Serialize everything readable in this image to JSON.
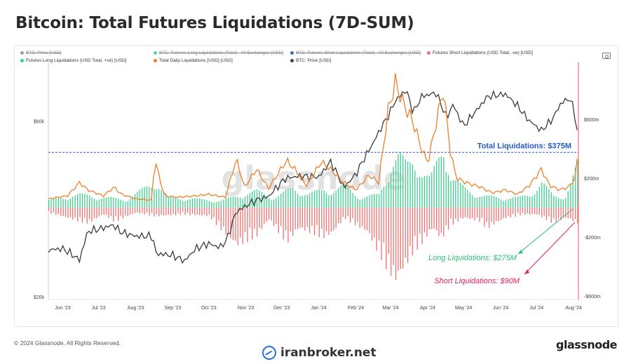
{
  "title": "Bitcoin: Total Futures Liquidations (7D-SUM)",
  "legend": [
    {
      "label": "BTC: Price [USD]",
      "color": "#9e9e9e",
      "dim": true
    },
    {
      "label": "BTC: Futures Long Liquidations (Total) - All Exchanges [USD]",
      "color": "#5fd6a0",
      "dim": true
    },
    {
      "label": "BTC: Futures Short Liquidations (Total) - All Exchanges [USD]",
      "color": "#3b6fb6",
      "dim": true
    },
    {
      "label": "Futures Short Liquidations (USD Total, -ve) [USD]",
      "color": "#f07070",
      "dim": false
    },
    {
      "label": "Futures Long Liquidations (USD Total, +ve) [USD]",
      "color": "#3ecf8e",
      "dim": false
    },
    {
      "label": "Total Daily Liquidations [USD] [USD]",
      "color": "#f07f2a",
      "dim": false
    },
    {
      "label": "BTC: Price [USD]",
      "color": "#444444",
      "dim": false
    }
  ],
  "footer": {
    "copyright": "© 2024 Glassnode. All Rights Reserved.",
    "brand": "glassnode",
    "watermark_site": "iranbroker.net",
    "watermark_logo": "glassnode"
  },
  "chart_data": {
    "type": "line",
    "x_ticks": [
      "Jun '23",
      "Jul '23",
      "Aug '23",
      "Sep '23",
      "Oct '23",
      "Nov '23",
      "Dec '23",
      "Jan '24",
      "Feb '24",
      "Mar '24",
      "Apr '24",
      "May '24",
      "Jun '24",
      "Jul '24",
      "Aug '24"
    ],
    "x_start": "2023-05-20",
    "x_end": "2024-08-05",
    "left_axis": {
      "label": "",
      "scale": "log",
      "ticks": [
        "$20k",
        "$60k"
      ],
      "tick_values": [
        20000,
        60000
      ],
      "range": [
        20000,
        80000
      ]
    },
    "right_axis": {
      "label": "",
      "ticks": [
        "-$600m",
        "-$200m",
        "$200m",
        "$600m"
      ],
      "tick_values": [
        -600,
        -200,
        200,
        600
      ],
      "range": [
        -600,
        600
      ],
      "unit": "m USD"
    },
    "reference_line": {
      "value": 375,
      "label": "Total Liquidations: $375M",
      "color": "#2459c9",
      "style": "dashed"
    },
    "annotations": [
      {
        "text": "Long Liquidations: $275M",
        "color": "#2bbf7a"
      },
      {
        "text": "Short Liquidations: $90M",
        "color": "#e0245e"
      }
    ],
    "series": [
      {
        "name": "BTC: Price [USD]",
        "axis": "left",
        "color": "#3a3a3a",
        "kind": "line",
        "points": [
          [
            "2023-05-20",
            26800
          ],
          [
            "2023-06-01",
            27000
          ],
          [
            "2023-06-10",
            25900
          ],
          [
            "2023-06-15",
            25100
          ],
          [
            "2023-06-22",
            30100
          ],
          [
            "2023-07-01",
            30500
          ],
          [
            "2023-07-13",
            31300
          ],
          [
            "2023-07-20",
            29900
          ],
          [
            "2023-08-01",
            29200
          ],
          [
            "2023-08-15",
            29200
          ],
          [
            "2023-08-18",
            26200
          ],
          [
            "2023-09-01",
            25900
          ],
          [
            "2023-09-11",
            25000
          ],
          [
            "2023-09-20",
            27000
          ],
          [
            "2023-10-01",
            27900
          ],
          [
            "2023-10-10",
            27200
          ],
          [
            "2023-10-16",
            28400
          ],
          [
            "2023-10-24",
            34000
          ],
          [
            "2023-11-09",
            36500
          ],
          [
            "2023-11-20",
            37400
          ],
          [
            "2023-12-04",
            41900
          ],
          [
            "2023-12-15",
            42500
          ],
          [
            "2024-01-01",
            42300
          ],
          [
            "2024-01-11",
            46500
          ],
          [
            "2024-01-22",
            39500
          ],
          [
            "2024-02-01",
            43000
          ],
          [
            "2024-02-15",
            52000
          ],
          [
            "2024-02-28",
            62000
          ],
          [
            "2024-03-05",
            68000
          ],
          [
            "2024-03-14",
            73000
          ],
          [
            "2024-03-20",
            63000
          ],
          [
            "2024-03-27",
            70000
          ],
          [
            "2024-04-08",
            71500
          ],
          [
            "2024-04-17",
            61000
          ],
          [
            "2024-04-22",
            66500
          ],
          [
            "2024-05-01",
            58000
          ],
          [
            "2024-05-15",
            66000
          ],
          [
            "2024-05-21",
            70000
          ],
          [
            "2024-06-05",
            71000
          ],
          [
            "2024-06-15",
            66000
          ],
          [
            "2024-06-24",
            60500
          ],
          [
            "2024-07-05",
            56500
          ],
          [
            "2024-07-14",
            60500
          ],
          [
            "2024-07-22",
            67500
          ],
          [
            "2024-07-29",
            69000
          ],
          [
            "2024-08-01",
            64500
          ],
          [
            "2024-08-05",
            54000
          ]
        ]
      },
      {
        "name": "Total Daily Liquidations [USD] [USD]",
        "axis": "right",
        "color": "#f07f2a",
        "kind": "line",
        "points": [
          [
            "2023-05-20",
            60
          ],
          [
            "2023-06-05",
            80
          ],
          [
            "2023-06-15",
            170
          ],
          [
            "2023-06-22",
            120
          ],
          [
            "2023-07-05",
            80
          ],
          [
            "2023-07-14",
            140
          ],
          [
            "2023-07-20",
            90
          ],
          [
            "2023-08-01",
            60
          ],
          [
            "2023-08-14",
            50
          ],
          [
            "2023-08-17",
            320
          ],
          [
            "2023-08-25",
            80
          ],
          [
            "2023-09-05",
            70
          ],
          [
            "2023-09-20",
            80
          ],
          [
            "2023-10-01",
            90
          ],
          [
            "2023-10-15",
            70
          ],
          [
            "2023-10-24",
            330
          ],
          [
            "2023-10-31",
            140
          ],
          [
            "2023-11-10",
            260
          ],
          [
            "2023-11-20",
            130
          ],
          [
            "2023-12-05",
            320
          ],
          [
            "2023-12-12",
            260
          ],
          [
            "2023-12-22",
            150
          ],
          [
            "2024-01-03",
            310
          ],
          [
            "2024-01-12",
            250
          ],
          [
            "2024-01-22",
            170
          ],
          [
            "2024-02-01",
            120
          ],
          [
            "2024-02-12",
            220
          ],
          [
            "2024-02-20",
            170
          ],
          [
            "2024-02-28",
            660
          ],
          [
            "2024-03-05",
            850
          ],
          [
            "2024-03-12",
            700
          ],
          [
            "2024-03-20",
            580
          ],
          [
            "2024-03-26",
            420
          ],
          [
            "2024-04-01",
            300
          ],
          [
            "2024-04-14",
            800
          ],
          [
            "2024-04-20",
            380
          ],
          [
            "2024-04-25",
            200
          ],
          [
            "2024-05-03",
            170
          ],
          [
            "2024-05-15",
            140
          ],
          [
            "2024-05-25",
            100
          ],
          [
            "2024-06-05",
            120
          ],
          [
            "2024-06-15",
            90
          ],
          [
            "2024-06-25",
            150
          ],
          [
            "2024-07-05",
            260
          ],
          [
            "2024-07-12",
            150
          ],
          [
            "2024-07-20",
            120
          ],
          [
            "2024-07-28",
            140
          ],
          [
            "2024-08-02",
            200
          ],
          [
            "2024-08-05",
            375
          ]
        ]
      },
      {
        "name": "Futures Long Liquidations (USD Total, +ve) [USD]",
        "axis": "right",
        "color": "#3ecf8e",
        "kind": "bars",
        "points": [
          [
            "2023-05-20",
            45
          ],
          [
            "2023-06-15",
            80
          ],
          [
            "2023-07-05",
            60
          ],
          [
            "2023-07-25",
            50
          ],
          [
            "2023-08-17",
            160
          ],
          [
            "2023-08-28",
            60
          ],
          [
            "2023-09-15",
            55
          ],
          [
            "2023-10-10",
            40
          ],
          [
            "2023-10-24",
            70
          ],
          [
            "2023-11-10",
            100
          ],
          [
            "2023-11-25",
            60
          ],
          [
            "2023-12-10",
            120
          ],
          [
            "2023-12-22",
            80
          ],
          [
            "2024-01-05",
            110
          ],
          [
            "2024-01-12",
            100
          ],
          [
            "2024-01-22",
            130
          ],
          [
            "2024-02-05",
            60
          ],
          [
            "2024-02-20",
            80
          ],
          [
            "2024-03-01",
            250
          ],
          [
            "2024-03-08",
            310
          ],
          [
            "2024-03-14",
            260
          ],
          [
            "2024-03-20",
            310
          ],
          [
            "2024-03-27",
            200
          ],
          [
            "2024-04-03",
            170
          ],
          [
            "2024-04-14",
            390
          ],
          [
            "2024-04-20",
            180
          ],
          [
            "2024-05-01",
            120
          ],
          [
            "2024-05-15",
            70
          ],
          [
            "2024-06-01",
            60
          ],
          [
            "2024-06-15",
            60
          ],
          [
            "2024-06-25",
            80
          ],
          [
            "2024-07-05",
            150
          ],
          [
            "2024-07-15",
            70
          ],
          [
            "2024-07-25",
            70
          ],
          [
            "2024-08-05",
            275
          ]
        ]
      },
      {
        "name": "Futures Short Liquidations (USD Total, -ve) [USD]",
        "axis": "right",
        "color": "#f07070",
        "kind": "bars",
        "points": [
          [
            "2023-05-20",
            -30
          ],
          [
            "2023-06-15",
            -80
          ],
          [
            "2023-06-22",
            -90
          ],
          [
            "2023-07-05",
            -40
          ],
          [
            "2023-07-14",
            -80
          ],
          [
            "2023-08-01",
            -30
          ],
          [
            "2023-08-17",
            -50
          ],
          [
            "2023-09-10",
            -40
          ],
          [
            "2023-10-01",
            -50
          ],
          [
            "2023-10-24",
            -220
          ],
          [
            "2023-11-10",
            -160
          ],
          [
            "2023-11-20",
            -70
          ],
          [
            "2023-12-05",
            -200
          ],
          [
            "2023-12-15",
            -120
          ],
          [
            "2024-01-05",
            -170
          ],
          [
            "2024-01-12",
            -150
          ],
          [
            "2024-01-22",
            -60
          ],
          [
            "2024-02-10",
            -140
          ],
          [
            "2024-02-28",
            -360
          ],
          [
            "2024-03-05",
            -420
          ],
          [
            "2024-03-12",
            -350
          ],
          [
            "2024-03-20",
            -250
          ],
          [
            "2024-03-27",
            -200
          ],
          [
            "2024-04-05",
            -120
          ],
          [
            "2024-04-12",
            -180
          ],
          [
            "2024-04-20",
            -100
          ],
          [
            "2024-05-01",
            -60
          ],
          [
            "2024-05-15",
            -80
          ],
          [
            "2024-05-20",
            -120
          ],
          [
            "2024-06-05",
            -60
          ],
          [
            "2024-06-20",
            -40
          ],
          [
            "2024-07-01",
            -40
          ],
          [
            "2024-07-15",
            -90
          ],
          [
            "2024-07-25",
            -60
          ],
          [
            "2024-08-05",
            -90
          ]
        ]
      }
    ]
  }
}
